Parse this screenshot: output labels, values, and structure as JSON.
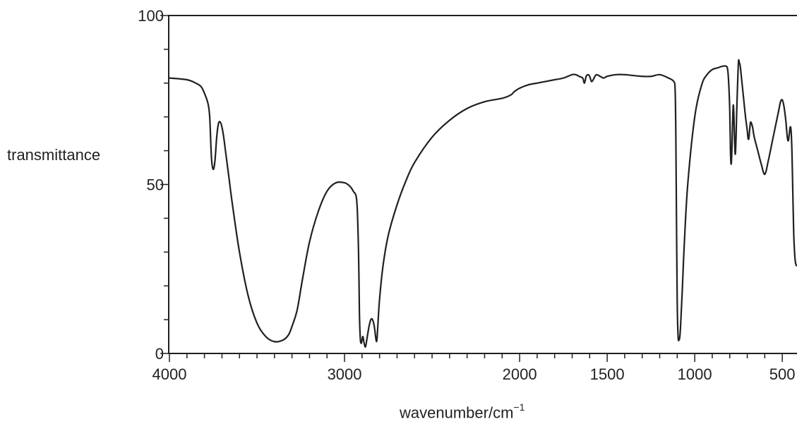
{
  "chart_data": {
    "type": "line",
    "xlabel": "wavenumber",
    "xlabel_sep": "/",
    "xlabel_unit": "cm",
    "xlabel_unit_exp": "−1",
    "ylabel": "transmittance",
    "xlim": [
      4000,
      420
    ],
    "ylim": [
      0,
      100
    ],
    "x_ticks": [
      4000,
      3000,
      2000,
      1500,
      1000,
      500
    ],
    "x_tick_labels": [
      "4000",
      "3000",
      "2000",
      "1500",
      "1000",
      "500"
    ],
    "y_ticks": [
      0,
      50,
      100
    ],
    "y_tick_labels": [
      "0",
      "50",
      "100"
    ],
    "line_color": "#231f20",
    "series": [
      {
        "x": [
          4000,
          3900,
          3850,
          3820,
          3800,
          3780,
          3770,
          3760,
          3750,
          3740,
          3730,
          3720,
          3710,
          3700,
          3690,
          3680,
          3660,
          3640,
          3600,
          3550,
          3500,
          3450,
          3400,
          3350,
          3320,
          3300,
          3270,
          3240,
          3200,
          3150,
          3100,
          3050,
          3000,
          2970,
          2950,
          2930,
          2920,
          2915,
          2910,
          2905,
          2900,
          2895,
          2888,
          2880,
          2870,
          2860,
          2850,
          2840,
          2830,
          2820,
          2815,
          2810,
          2800,
          2780,
          2750,
          2700,
          2650,
          2600,
          2500,
          2400,
          2300,
          2200,
          2100,
          2050,
          2030,
          2000,
          1950,
          1900,
          1850,
          1800,
          1750,
          1700,
          1680,
          1660,
          1640,
          1630,
          1620,
          1610,
          1600,
          1590,
          1580,
          1570,
          1560,
          1540,
          1520,
          1500,
          1450,
          1400,
          1300,
          1250,
          1200,
          1150,
          1120,
          1112,
          1108,
          1104,
          1100,
          1095,
          1090,
          1085,
          1080,
          1070,
          1060,
          1040,
          1000,
          960,
          930,
          900,
          870,
          840,
          820,
          812,
          806,
          800,
          796,
          792,
          788,
          784,
          780,
          776,
          772,
          768,
          764,
          760,
          755,
          750,
          745,
          740,
          730,
          720,
          710,
          700,
          695,
          690,
          685,
          680,
          670,
          660,
          640,
          620,
          600,
          580,
          560,
          540,
          520,
          510,
          500,
          490,
          480,
          475,
          470,
          465,
          460,
          455,
          450,
          445,
          440,
          435,
          430,
          425,
          420
        ],
        "y": [
          81.5,
          81,
          80,
          79,
          77,
          74,
          70,
          58,
          54.5,
          57,
          64,
          68,
          68.5,
          67,
          64,
          60,
          52,
          44,
          30,
          17,
          9,
          5,
          3.5,
          4,
          5.5,
          8,
          13,
          22,
          33,
          42,
          48,
          50.5,
          50.5,
          49.5,
          48,
          45,
          30,
          12,
          4.5,
          3,
          4,
          5,
          3,
          2,
          5,
          8,
          10,
          10,
          8,
          4,
          4,
          8,
          16,
          26,
          35,
          44,
          51,
          56.5,
          64,
          69,
          72.5,
          74.5,
          75.5,
          76.5,
          77.5,
          78.5,
          79.5,
          80,
          80.5,
          81,
          81.5,
          82.5,
          82.5,
          82,
          81.5,
          80,
          82,
          82.5,
          82,
          80.5,
          81,
          82,
          82.5,
          82,
          81.5,
          82,
          82.5,
          82.5,
          82,
          82,
          82.5,
          81.5,
          80.5,
          78,
          65,
          38,
          15,
          5,
          4,
          5,
          9,
          20,
          32,
          50,
          70,
          79.5,
          82.5,
          84,
          84.5,
          85,
          85,
          84,
          80,
          72,
          60,
          56,
          60,
          68,
          73.5,
          70,
          62,
          59,
          64,
          72,
          80,
          86.5,
          86,
          85,
          80,
          75,
          70,
          66,
          63.5,
          64,
          67,
          68.5,
          67,
          64,
          60,
          56,
          53,
          57,
          62,
          67,
          72,
          74.5,
          75,
          73,
          69,
          66,
          63.5,
          63,
          65,
          67,
          66,
          60,
          48,
          36,
          30,
          27,
          26
        ]
      }
    ]
  }
}
